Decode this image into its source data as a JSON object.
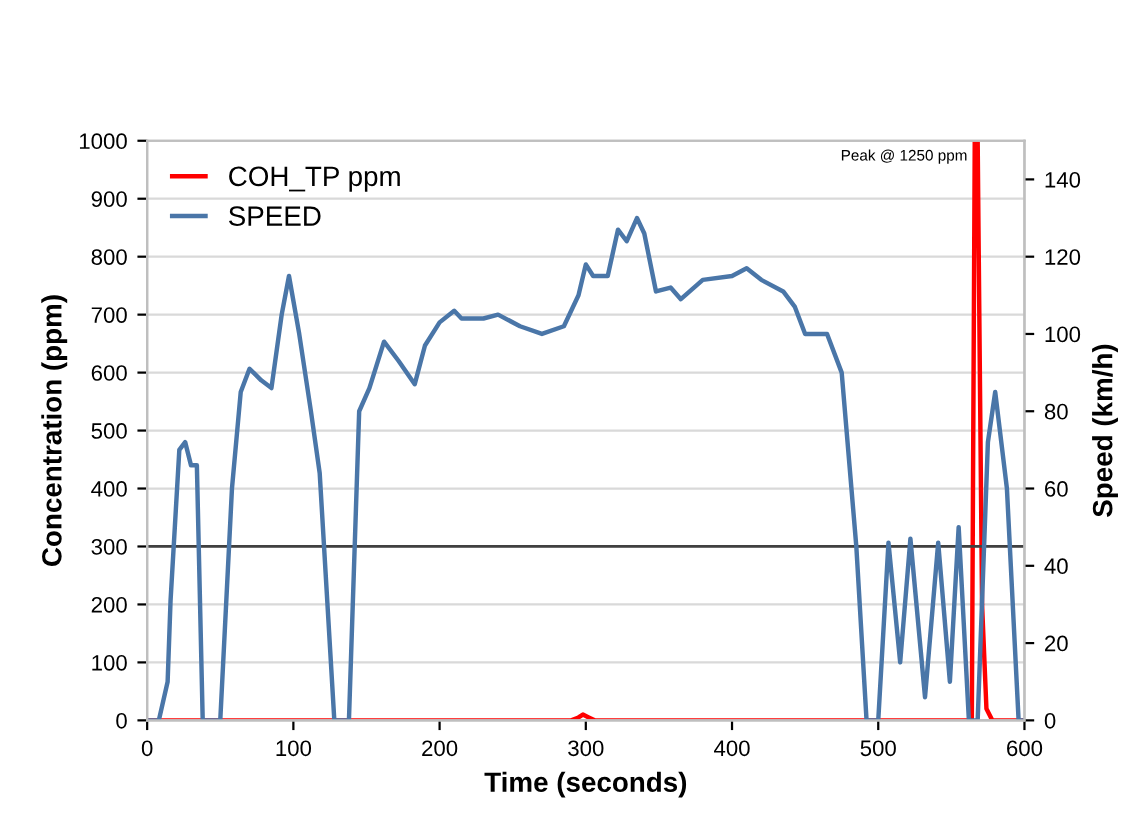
{
  "chart_data": {
    "type": "line",
    "xlabel": "Time (seconds)",
    "ylabel": "Concentration (ppm)",
    "y2label": "Speed (km/h)",
    "xlim": [
      0,
      600
    ],
    "xticks": [
      0,
      100,
      200,
      300,
      400,
      500,
      600
    ],
    "ylim": [
      0,
      1000
    ],
    "yticks": [
      0,
      100,
      200,
      300,
      400,
      500,
      600,
      700,
      800,
      900,
      1000
    ],
    "y2lim": [
      0,
      150
    ],
    "y2ticks": [
      0,
      20,
      40,
      60,
      80,
      100,
      120,
      140
    ],
    "grid": "y",
    "legend": "top left",
    "ref_lines": [
      {
        "axis": "y",
        "value": 300,
        "color": "#404040"
      }
    ],
    "annotations": [
      "Peak @ 1250 ppm"
    ],
    "series": [
      {
        "name": "COH_TP ppm",
        "color": "#ff0000",
        "x": [
          0,
          290,
          295,
          298,
          302,
          306,
          560,
          564,
          566,
          568,
          571,
          574,
          578,
          600
        ],
        "values": [
          0,
          0,
          5,
          10,
          5,
          0,
          0,
          0,
          1000,
          1000,
          200,
          20,
          0,
          0
        ]
      },
      {
        "name": "SPEED",
        "color": "#4a76a8",
        "axis": "y2",
        "x": [
          0,
          8,
          14,
          16,
          22,
          26,
          30,
          34,
          38,
          50,
          58,
          64,
          70,
          78,
          85,
          92,
          97,
          104,
          112,
          118,
          128,
          138,
          145,
          152,
          162,
          172,
          183,
          190,
          200,
          210,
          215,
          230,
          240,
          255,
          270,
          285,
          295,
          300,
          305,
          315,
          322,
          328,
          335,
          340,
          348,
          358,
          365,
          380,
          400,
          410,
          420,
          435,
          443,
          450,
          465,
          475,
          485,
          492,
          500,
          507,
          515,
          522,
          532,
          541,
          549,
          555,
          562,
          568,
          575,
          580,
          588,
          596,
          600
        ],
        "values": [
          0,
          0,
          10,
          31,
          70,
          72,
          66,
          66,
          0,
          0,
          60,
          85,
          91,
          88,
          86,
          105,
          115,
          100,
          80,
          64,
          0,
          0,
          80,
          86,
          98,
          93,
          87,
          97,
          103,
          106,
          104,
          104,
          105,
          102,
          100,
          102,
          110,
          118,
          115,
          115,
          127,
          124,
          130,
          126,
          111,
          112,
          109,
          114,
          115,
          117,
          114,
          111,
          107,
          100,
          100,
          90,
          45,
          0,
          0,
          46,
          15,
          47,
          6,
          46,
          10,
          50,
          0,
          0,
          72,
          85,
          60,
          0,
          0
        ]
      }
    ]
  }
}
